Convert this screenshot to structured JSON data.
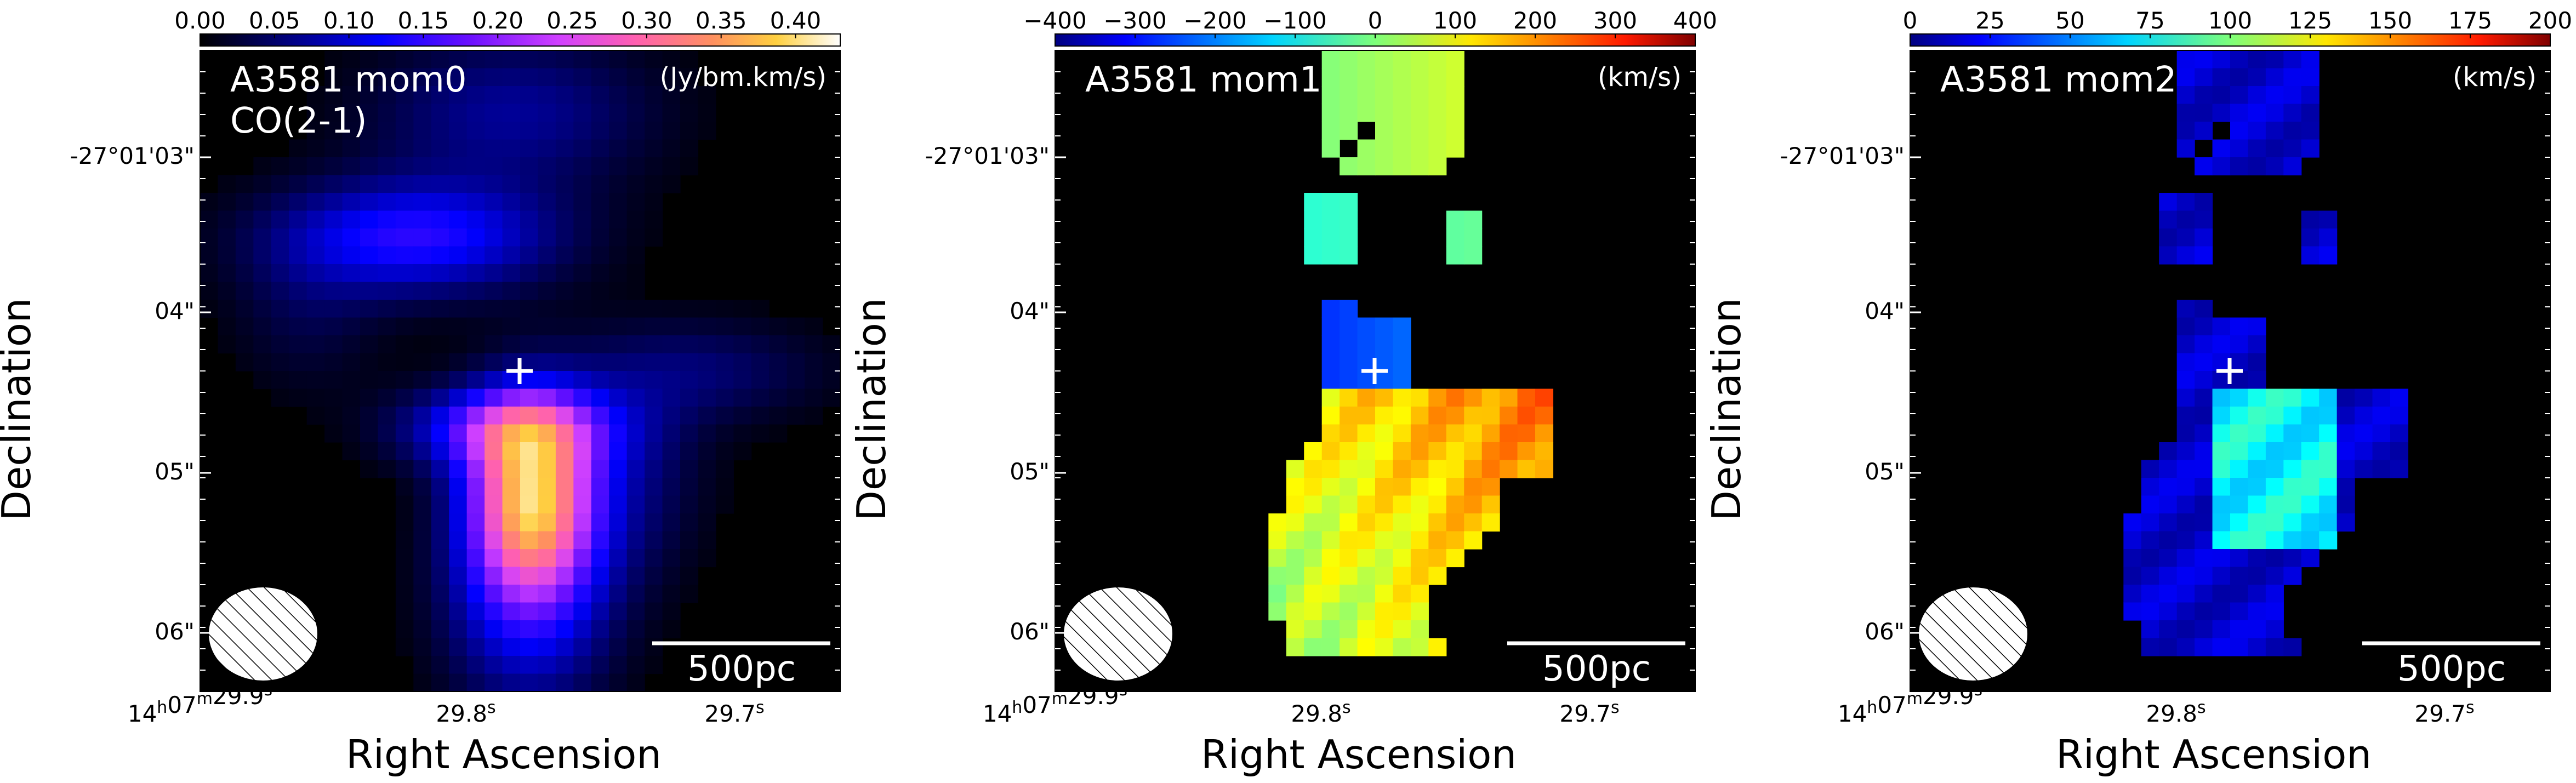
{
  "chart_data": [
    {
      "type": "heatmap",
      "title": "A3581 mom0",
      "subtitle": "CO(2-1)",
      "unit": "(Jy/bm.km/s)",
      "xlabel": "Right Ascension",
      "ylabel": "Declination",
      "colorbar_ticks": [
        "0.00",
        "0.05",
        "0.10",
        "0.15",
        "0.20",
        "0.25",
        "0.30",
        "0.35",
        "0.40"
      ],
      "colorbar_range": [
        0.0,
        0.43
      ],
      "colormap": "gnuplot2",
      "x_ticks": [
        "14h07m29.9s",
        "29.8s",
        "29.7s"
      ],
      "y_ticks": [
        "-27°01'03\"",
        "04\"",
        "05\"",
        "06\""
      ],
      "scalebar_label": "500pc",
      "beam": "hatched-ellipse",
      "marker": "cross",
      "background": "#000000"
    },
    {
      "type": "heatmap",
      "title": "A3581 mom1",
      "unit": "(km/s)",
      "xlabel": "Right Ascension",
      "ylabel": "Declination",
      "colorbar_ticks": [
        "−400",
        "−300",
        "−200",
        "−100",
        "0",
        "100",
        "200",
        "300",
        "400"
      ],
      "colorbar_range": [
        -400,
        400
      ],
      "colormap": "jet",
      "x_ticks": [
        "14h07m29.9s",
        "29.8s",
        "29.7s"
      ],
      "y_ticks": [
        "-27°01'03\"",
        "04\"",
        "05\"",
        "06\""
      ],
      "scalebar_label": "500pc",
      "beam": "hatched-ellipse",
      "marker": "cross",
      "background": "#000000"
    },
    {
      "type": "heatmap",
      "title": "A3581 mom2",
      "unit": "(km/s)",
      "xlabel": "Right Ascension",
      "ylabel": "Declination",
      "colorbar_ticks": [
        "0",
        "25",
        "50",
        "75",
        "100",
        "125",
        "150",
        "175",
        "200"
      ],
      "colorbar_range": [
        0,
        200
      ],
      "colormap": "jet",
      "x_ticks": [
        "14h07m29.9s",
        "29.8s",
        "29.7s"
      ],
      "y_ticks": [
        "-27°01'03\"",
        "04\"",
        "05\"",
        "06\""
      ],
      "scalebar_label": "500pc",
      "beam": "hatched-ellipse",
      "marker": "cross",
      "background": "#000000"
    }
  ]
}
